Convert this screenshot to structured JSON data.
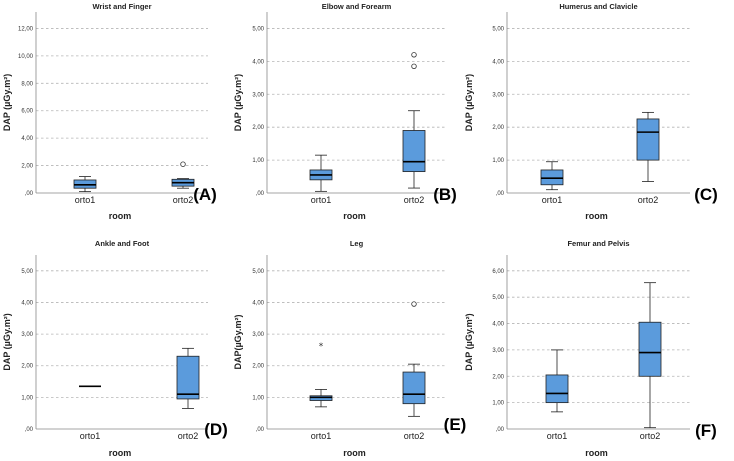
{
  "chart_data": [
    {
      "type": "box",
      "panel_label": "(A)",
      "title": "Wrist and Finger",
      "xlabel": "room",
      "ylabel": "DAP (µGy.m²)",
      "ylim": [
        0,
        13.2
      ],
      "yticks": [
        0,
        2,
        4,
        6,
        8,
        10,
        12
      ],
      "ytick_labels": [
        ",00",
        "2,00",
        "4,00",
        "6,00",
        "8,00",
        "10,00",
        "12,00"
      ],
      "categories": [
        "orto1",
        "orto2"
      ],
      "boxes": [
        {
          "min": 0.1,
          "q1": 0.35,
          "median": 0.6,
          "q3": 0.95,
          "max": 1.2,
          "outliers": [],
          "extremes": []
        },
        {
          "min": 0.35,
          "q1": 0.5,
          "median": 0.75,
          "q3": 1.0,
          "max": 1.05,
          "outliers": [
            2.1
          ],
          "extremes": []
        }
      ]
    },
    {
      "type": "box",
      "panel_label": "(B)",
      "title": "Elbow and Forearm",
      "xlabel": "room",
      "ylabel": "DAP (µGy.m²)",
      "ylim": [
        0,
        5.5
      ],
      "yticks": [
        0,
        1,
        2,
        3,
        4,
        5
      ],
      "ytick_labels": [
        ",00",
        "1,00",
        "2,00",
        "3,00",
        "4,00",
        "5,00"
      ],
      "categories": [
        "orto1",
        "orto2"
      ],
      "boxes": [
        {
          "min": 0.05,
          "q1": 0.4,
          "median": 0.55,
          "q3": 0.7,
          "max": 1.15,
          "outliers": [],
          "extremes": []
        },
        {
          "min": 0.15,
          "q1": 0.65,
          "median": 0.95,
          "q3": 1.9,
          "max": 2.5,
          "outliers": [
            3.85,
            4.2
          ],
          "extremes": []
        }
      ]
    },
    {
      "type": "box",
      "panel_label": "(C)",
      "title": "Humerus and Clavicle",
      "xlabel": "room",
      "ylabel": "DAP (µGy.m²)",
      "ylim": [
        0,
        5.5
      ],
      "yticks": [
        0,
        1,
        2,
        3,
        4,
        5
      ],
      "ytick_labels": [
        ",00",
        "1,00",
        "2,00",
        "3,00",
        "4,00",
        "5,00"
      ],
      "categories": [
        "orto1",
        "orto2"
      ],
      "boxes": [
        {
          "min": 0.1,
          "q1": 0.25,
          "median": 0.45,
          "q3": 0.7,
          "max": 0.95,
          "outliers": [],
          "extremes": []
        },
        {
          "min": 0.35,
          "q1": 1.0,
          "median": 1.85,
          "q3": 2.25,
          "max": 2.45,
          "outliers": [],
          "extremes": []
        }
      ]
    },
    {
      "type": "box",
      "panel_label": "(D)",
      "title": "Ankle and Foot",
      "xlabel": "room",
      "ylabel": "DAP (µGy.m²)",
      "ylim": [
        0,
        5.5
      ],
      "yticks": [
        0,
        1,
        2,
        3,
        4,
        5
      ],
      "ytick_labels": [
        ",00",
        "1,00",
        "2,00",
        "3,00",
        "4,00",
        "5,00"
      ],
      "categories": [
        "orto1",
        "orto2"
      ],
      "boxes": [
        {
          "min": 1.35,
          "q1": 1.35,
          "median": 1.35,
          "q3": 1.35,
          "max": 1.35,
          "outliers": [],
          "extremes": []
        },
        {
          "min": 0.65,
          "q1": 0.95,
          "median": 1.1,
          "q3": 2.3,
          "max": 2.55,
          "outliers": [],
          "extremes": []
        }
      ]
    },
    {
      "type": "box",
      "panel_label": "(E)",
      "title": "Leg",
      "xlabel": "room",
      "ylabel": "DAP(µGy.m²)",
      "ylim": [
        0,
        5.5
      ],
      "yticks": [
        0,
        1,
        2,
        3,
        4,
        5
      ],
      "ytick_labels": [
        ",00",
        "1,00",
        "2,00",
        "3,00",
        "4,00",
        "5,00"
      ],
      "categories": [
        "orto1",
        "orto2"
      ],
      "boxes": [
        {
          "min": 0.7,
          "q1": 0.9,
          "median": 1.0,
          "q3": 1.05,
          "max": 1.25,
          "outliers": [],
          "extremes": [
            2.65
          ]
        },
        {
          "min": 0.4,
          "q1": 0.8,
          "median": 1.1,
          "q3": 1.8,
          "max": 2.05,
          "outliers": [
            3.95
          ],
          "extremes": []
        }
      ]
    },
    {
      "type": "box",
      "panel_label": "(F)",
      "title": "Femur and Pelvis",
      "xlabel": "room",
      "ylabel": "DAP (µGy.m²)",
      "ylim": [
        0,
        6.6
      ],
      "yticks": [
        0,
        1,
        2,
        3,
        4,
        5,
        6
      ],
      "ytick_labels": [
        ",00",
        "1,00",
        "2,00",
        "3,00",
        "4,00",
        "5,00",
        "6,00"
      ],
      "categories": [
        "orto1",
        "orto2"
      ],
      "boxes": [
        {
          "min": 0.65,
          "q1": 1.0,
          "median": 1.35,
          "q3": 2.05,
          "max": 3.0,
          "outliers": [],
          "extremes": []
        },
        {
          "min": 0.05,
          "q1": 2.0,
          "median": 2.9,
          "q3": 4.05,
          "max": 5.55,
          "outliers": [],
          "extremes": []
        }
      ]
    }
  ],
  "colors": {
    "box_fill": "#5b9bdc",
    "grid": "#b5b5b5"
  }
}
